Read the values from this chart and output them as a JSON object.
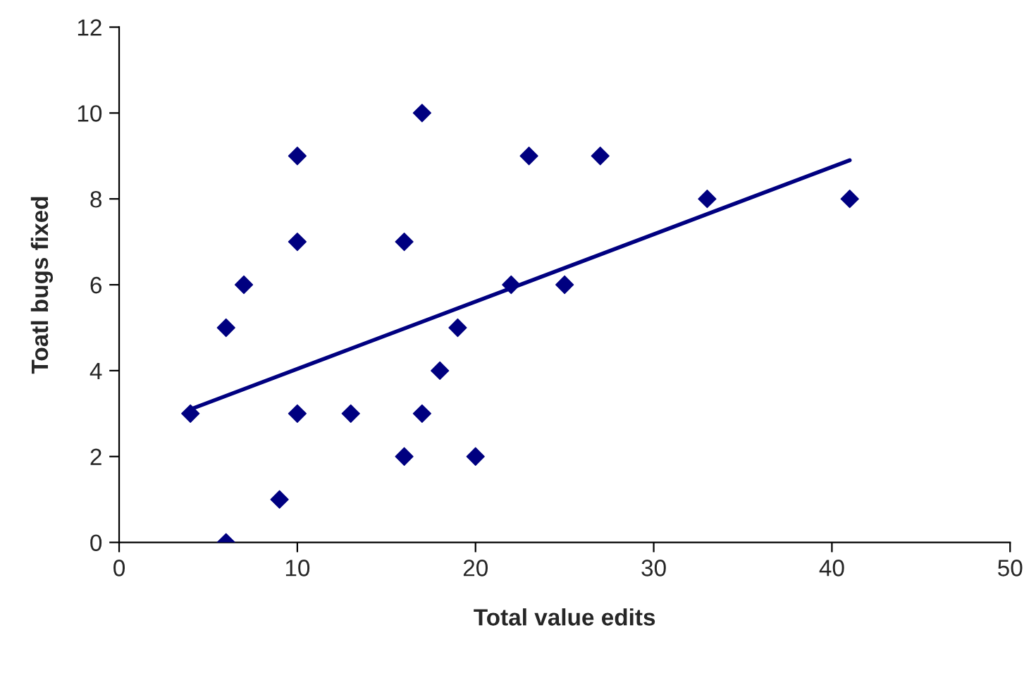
{
  "chart_data": {
    "type": "scatter",
    "xlabel": "Total value edits",
    "ylabel": "Toatl bugs fixed",
    "xlim": [
      0,
      50
    ],
    "xticks": [
      0,
      10,
      20,
      30,
      40,
      50
    ],
    "ylim": [
      0,
      12
    ],
    "yticks": [
      0,
      2,
      4,
      6,
      8,
      10,
      12
    ],
    "grid": false,
    "marker": "diamond",
    "series": [
      {
        "color": "#000080",
        "x": [
          4,
          6,
          7,
          6,
          9,
          10,
          10,
          10,
          13,
          16,
          16,
          17,
          17,
          18,
          19,
          20,
          22,
          23,
          25,
          27,
          33,
          41
        ],
        "values": [
          3,
          5,
          6,
          0,
          1,
          9,
          7,
          3,
          3,
          7,
          2,
          10,
          3,
          4,
          5,
          2,
          6,
          9,
          6,
          9,
          8,
          8
        ]
      },
      {
        "type": "line",
        "color": "#000080",
        "line_style": "solid",
        "marker": "none",
        "x": [
          4,
          41
        ],
        "values": [
          3.1,
          8.9
        ]
      }
    ]
  }
}
